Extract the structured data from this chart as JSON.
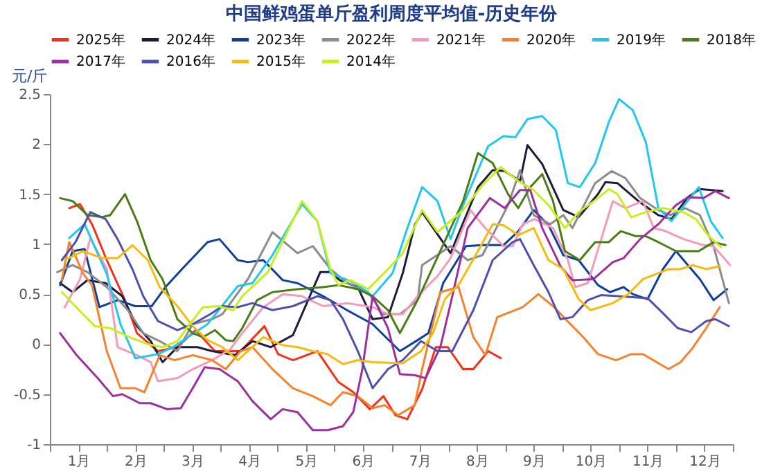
{
  "chart_data": {
    "type": "line",
    "title": "中国鲜鸡蛋单斤盈利周度平均值-历史年份",
    "ylabel": "元/斤",
    "legend": "top",
    "grid": false,
    "xlim": [
      0,
      12
    ],
    "xticks": [
      {
        "value": 0,
        "label": null
      },
      {
        "value": 0.5,
        "label": "1月"
      },
      {
        "value": 1,
        "label": null
      },
      {
        "value": 1.5,
        "label": "2月"
      },
      {
        "value": 2,
        "label": null
      },
      {
        "value": 2.5,
        "label": "3月"
      },
      {
        "value": 3,
        "label": null
      },
      {
        "value": 3.5,
        "label": "4月"
      },
      {
        "value": 4,
        "label": null
      },
      {
        "value": 4.5,
        "label": "5月"
      },
      {
        "value": 5,
        "label": null
      },
      {
        "value": 5.5,
        "label": "6月"
      },
      {
        "value": 6,
        "label": null
      },
      {
        "value": 6.5,
        "label": "7月"
      },
      {
        "value": 7,
        "label": null
      },
      {
        "value": 7.5,
        "label": "8月"
      },
      {
        "value": 8,
        "label": null
      },
      {
        "value": 8.5,
        "label": "9月"
      },
      {
        "value": 9,
        "label": null
      },
      {
        "value": 9.5,
        "label": "10月"
      },
      {
        "value": 10,
        "label": null
      },
      {
        "value": 10.5,
        "label": "11月"
      },
      {
        "value": 11,
        "label": null
      },
      {
        "value": 11.5,
        "label": "12月"
      },
      {
        "value": 12,
        "label": null
      }
    ],
    "ylim": [
      -1,
      2.5
    ],
    "yticks": [
      -1,
      -0.5,
      0,
      0.5,
      1,
      1.5,
      2,
      2.5
    ],
    "series": [
      {
        "name": "2025年",
        "color": "#f5311b",
        "x": [
          0.34,
          0.53,
          0.74,
          1.0,
          1.32,
          1.53,
          1.9,
          2.24,
          2.56,
          2.9,
          3.35,
          3.77,
          4.01,
          4.27,
          4.7,
          5.07,
          5.33,
          5.62,
          5.86,
          6.07,
          6.28,
          6.54,
          6.78,
          6.99,
          7.26,
          7.44,
          7.7,
          7.92
        ],
        "values": [
          1.36,
          1.4,
          1.2,
          0.84,
          0.44,
          0.11,
          -0.07,
          -0.03,
          0.14,
          -0.07,
          -0.07,
          0.18,
          -0.1,
          -0.16,
          -0.07,
          -0.38,
          -0.48,
          -0.65,
          -0.52,
          -0.71,
          -0.75,
          -0.45,
          -0.03,
          -0.03,
          -0.25,
          -0.25,
          -0.07,
          -0.14
        ]
      },
      {
        "name": "2024年",
        "color": "#1c1c3c",
        "x": [
          0.18,
          0.4,
          0.66,
          0.98,
          1.27,
          1.53,
          1.77,
          1.98,
          2.24,
          2.59,
          2.85,
          3.25,
          3.56,
          3.88,
          4.27,
          4.75,
          4.93,
          5.09,
          5.41,
          5.67,
          5.94,
          6.2,
          6.41,
          6.54,
          7.04,
          7.52,
          7.78,
          7.99,
          8.26,
          8.39,
          8.65,
          9.02,
          9.29,
          9.63,
          9.76,
          9.97,
          10.34,
          10.69,
          10.92,
          11.21,
          11.42,
          11.82
        ],
        "values": [
          0.61,
          0.52,
          0.64,
          0.61,
          0.48,
          0.18,
          0.03,
          -0.18,
          -0.03,
          -0.03,
          -0.07,
          -0.11,
          0.03,
          -0.03,
          0.09,
          0.72,
          0.72,
          0.64,
          0.57,
          0.25,
          0.27,
          0.71,
          1.19,
          1.32,
          0.91,
          1.57,
          1.74,
          1.73,
          1.63,
          1.99,
          1.8,
          1.34,
          1.27,
          1.5,
          1.62,
          1.61,
          1.43,
          1.29,
          1.25,
          1.47,
          1.55,
          1.53
        ]
      },
      {
        "name": "2023年",
        "color": "#0e3f9c",
        "x": [
          0.18,
          0.4,
          0.61,
          0.87,
          1.19,
          1.5,
          1.79,
          2.03,
          2.32,
          2.77,
          2.98,
          3.3,
          3.48,
          3.75,
          4.09,
          4.35,
          4.8,
          5.22,
          5.67,
          6.15,
          6.46,
          6.65,
          6.91,
          7.31,
          7.6,
          7.97,
          8.23,
          8.5,
          8.76,
          9.02,
          9.29,
          9.63,
          9.84,
          10.08,
          10.24,
          10.5,
          10.77,
          11.0,
          11.42,
          11.66,
          11.9
        ],
        "values": [
          0.59,
          0.93,
          0.95,
          0.37,
          0.44,
          0.38,
          0.38,
          0.57,
          0.75,
          1.02,
          1.05,
          0.84,
          0.82,
          0.84,
          0.64,
          0.61,
          0.48,
          0.34,
          0.2,
          -0.07,
          0.04,
          0.11,
          0.61,
          0.98,
          0.99,
          0.99,
          1.13,
          1.34,
          1.19,
          0.89,
          0.84,
          0.59,
          0.52,
          0.57,
          0.5,
          0.45,
          0.75,
          0.93,
          0.65,
          0.44,
          0.55
        ]
      },
      {
        "name": "2022年",
        "color": "#8c8c8c",
        "x": [
          0.13,
          0.4,
          0.66,
          1.0,
          1.37,
          1.64,
          1.93,
          2.24,
          2.51,
          2.85,
          3.03,
          3.48,
          3.91,
          4.35,
          4.62,
          4.93,
          5.22,
          5.59,
          5.86,
          6.15,
          6.46,
          6.54,
          7.04,
          7.34,
          7.6,
          8.05,
          8.26,
          8.5,
          8.79,
          9.02,
          9.18,
          9.58,
          9.87,
          10.11,
          10.37,
          10.69,
          10.9,
          11.16,
          11.42,
          11.66,
          11.93
        ],
        "values": [
          0.72,
          0.79,
          0.72,
          0.57,
          0.34,
          0.11,
          0.03,
          -0.07,
          0.2,
          0.25,
          0.3,
          0.65,
          1.12,
          0.91,
          0.98,
          0.75,
          0.61,
          0.52,
          0.3,
          0.3,
          0.44,
          0.79,
          0.98,
          0.84,
          0.89,
          1.39,
          1.74,
          1.29,
          1.2,
          1.29,
          1.16,
          1.61,
          1.73,
          1.66,
          1.46,
          1.34,
          1.29,
          1.36,
          1.29,
          0.98,
          0.41
        ]
      },
      {
        "name": "2021年",
        "color": "#f59bb8",
        "x": [
          0.26,
          0.53,
          0.71,
          1.0,
          1.19,
          1.53,
          1.77,
          1.9,
          2.24,
          2.51,
          2.85,
          3.17,
          3.38,
          3.75,
          4.09,
          4.43,
          4.8,
          5.22,
          5.67,
          5.94,
          6.2,
          6.46,
          6.81,
          7.04,
          7.39,
          7.65,
          7.97,
          8.13,
          8.31,
          8.52,
          8.84,
          9.1,
          9.23,
          9.45,
          9.89,
          10.11,
          10.42,
          10.61,
          10.82,
          11.13,
          11.48,
          11.66,
          11.95
        ],
        "values": [
          0.37,
          0.65,
          1.06,
          0.75,
          -0.03,
          -0.11,
          -0.18,
          -0.37,
          -0.34,
          -0.25,
          -0.16,
          -0.05,
          0.11,
          0.37,
          0.5,
          0.48,
          0.38,
          0.41,
          0.37,
          0.3,
          0.3,
          0.48,
          0.68,
          0.86,
          1.34,
          1.16,
          0.98,
          0.98,
          1.2,
          1.25,
          1.16,
          0.84,
          0.57,
          0.61,
          1.43,
          1.36,
          1.43,
          1.16,
          1.13,
          1.05,
          0.99,
          0.98,
          0.79
        ]
      },
      {
        "name": "2020年",
        "color": "#f7822c",
        "x": [
          0.21,
          0.34,
          0.58,
          0.74,
          1.0,
          1.24,
          1.5,
          1.66,
          1.93,
          2.19,
          2.51,
          2.85,
          3.09,
          3.35,
          3.56,
          3.91,
          4.27,
          4.62,
          4.93,
          5.15,
          5.41,
          5.67,
          5.88,
          6.12,
          6.41,
          6.54,
          6.86,
          7.18,
          7.44,
          7.65,
          7.86,
          8.31,
          8.58,
          8.84,
          9.18,
          9.37,
          9.63,
          9.95,
          10.21,
          10.42,
          10.87,
          11.08,
          11.29,
          11.53,
          11.77
        ],
        "values": [
          0.64,
          1.02,
          0.71,
          0.59,
          -0.07,
          -0.44,
          -0.44,
          -0.48,
          -0.11,
          -0.16,
          -0.11,
          -0.16,
          -0.25,
          -0.07,
          -0.03,
          -0.25,
          -0.44,
          -0.52,
          -0.61,
          -0.48,
          -0.52,
          -0.64,
          -0.61,
          -0.71,
          -0.61,
          -0.25,
          0.52,
          0.57,
          0.07,
          -0.11,
          0.27,
          0.37,
          0.5,
          0.38,
          0.18,
          0.07,
          -0.1,
          -0.16,
          -0.1,
          -0.1,
          -0.25,
          -0.18,
          -0.04,
          0.16,
          0.37
        ]
      },
      {
        "name": "2019年",
        "color": "#1ec8f0",
        "x": [
          0.34,
          0.61,
          1.0,
          1.24,
          1.5,
          1.9,
          2.16,
          2.77,
          3.3,
          3.56,
          3.91,
          4.43,
          4.7,
          4.93,
          5.36,
          5.67,
          6.02,
          6.28,
          6.54,
          6.81,
          7.04,
          7.26,
          7.7,
          7.97,
          8.18,
          8.39,
          8.65,
          8.89,
          9.1,
          9.31,
          9.58,
          9.82,
          10.0,
          10.24,
          10.47,
          10.69,
          10.92,
          11.4,
          11.61,
          11.82
        ],
        "values": [
          1.06,
          1.2,
          0.7,
          0.2,
          -0.14,
          -0.1,
          -0.03,
          0.2,
          0.58,
          0.61,
          0.89,
          1.4,
          1.23,
          0.71,
          0.61,
          0.48,
          0.71,
          1.16,
          1.57,
          1.43,
          1.05,
          1.39,
          1.98,
          2.08,
          2.07,
          2.25,
          2.28,
          2.14,
          1.61,
          1.57,
          1.81,
          2.22,
          2.45,
          2.34,
          2.02,
          1.36,
          1.23,
          1.57,
          1.23,
          1.06
        ]
      },
      {
        "name": "2018年",
        "color": "#4a7d17",
        "x": [
          0.18,
          0.4,
          0.66,
          0.92,
          1.06,
          1.32,
          1.53,
          1.77,
          1.98,
          2.24,
          2.51,
          2.69,
          2.9,
          3.09,
          3.22,
          3.38,
          3.64,
          3.91,
          4.35,
          4.8,
          5.07,
          5.41,
          5.67,
          5.94,
          6.15,
          6.46,
          6.86,
          7.26,
          7.52,
          7.78,
          8.05,
          8.23,
          8.44,
          8.65,
          8.84,
          9.05,
          9.31,
          9.58,
          9.82,
          10.03,
          10.29,
          10.47,
          10.69,
          11.0,
          11.4,
          11.66,
          11.87
        ],
        "values": [
          1.46,
          1.43,
          1.29,
          1.27,
          1.29,
          1.5,
          1.23,
          0.84,
          0.65,
          0.25,
          0.11,
          0.07,
          0.14,
          0.04,
          0.03,
          0.16,
          0.44,
          0.52,
          0.55,
          0.57,
          0.59,
          0.55,
          0.48,
          0.34,
          0.11,
          0.44,
          0.93,
          1.43,
          1.91,
          1.81,
          1.5,
          1.36,
          1.57,
          1.7,
          1.43,
          0.93,
          0.84,
          1.02,
          1.02,
          1.13,
          1.08,
          1.08,
          1.02,
          0.93,
          0.93,
          1.02,
          0.99
        ]
      },
      {
        "name": "2017年",
        "color": "#9b2f9f",
        "x": [
          0.18,
          0.47,
          0.84,
          1.11,
          1.27,
          1.58,
          1.77,
          2.06,
          2.3,
          2.51,
          2.72,
          2.98,
          3.3,
          3.56,
          3.88,
          4.09,
          4.35,
          4.62,
          4.88,
          5.15,
          5.33,
          5.49,
          5.67,
          5.94,
          6.15,
          6.41,
          6.6,
          6.86,
          7.07,
          7.34,
          7.73,
          7.99,
          8.26,
          8.44,
          8.65,
          8.97,
          9.18,
          9.55,
          9.89,
          10.08,
          10.37,
          10.69,
          11.0,
          11.21,
          11.48,
          11.69,
          11.93
        ],
        "values": [
          0.11,
          -0.11,
          -0.34,
          -0.52,
          -0.5,
          -0.59,
          -0.59,
          -0.65,
          -0.64,
          -0.44,
          -0.23,
          -0.25,
          -0.37,
          -0.57,
          -0.75,
          -0.65,
          -0.68,
          -0.86,
          -0.86,
          -0.82,
          -0.68,
          -0.25,
          0.48,
          0.16,
          -0.3,
          -0.31,
          -0.34,
          -0.03,
          0.48,
          1.16,
          1.46,
          1.36,
          1.54,
          1.54,
          1.16,
          0.78,
          0.64,
          0.65,
          0.82,
          0.86,
          1.05,
          1.2,
          1.39,
          1.47,
          1.46,
          1.53,
          1.46
        ]
      },
      {
        "name": "2016年",
        "color": "#4e4fb0",
        "x": [
          0.21,
          0.45,
          0.71,
          0.98,
          1.19,
          1.45,
          1.64,
          1.9,
          2.24,
          2.51,
          2.82,
          3.03,
          3.3,
          3.56,
          3.91,
          4.27,
          4.7,
          4.93,
          5.15,
          5.41,
          5.67,
          5.94,
          6.2,
          6.52,
          6.81,
          7.07,
          7.44,
          7.78,
          8.13,
          8.26,
          8.5,
          8.76,
          8.97,
          9.18,
          9.45,
          9.68,
          9.97,
          10.5,
          10.77,
          11.03,
          11.27,
          11.53,
          11.69,
          11.93
        ],
        "values": [
          0.84,
          1.02,
          1.32,
          1.25,
          1.05,
          0.75,
          0.48,
          0.23,
          0.14,
          0.2,
          0.3,
          0.38,
          0.37,
          0.41,
          0.34,
          0.38,
          0.48,
          0.44,
          0.25,
          -0.07,
          -0.44,
          -0.25,
          -0.16,
          0.03,
          -0.07,
          -0.07,
          0.34,
          0.84,
          1.02,
          1.05,
          0.79,
          0.52,
          0.25,
          0.27,
          0.44,
          0.49,
          0.48,
          0.46,
          0.31,
          0.16,
          0.12,
          0.23,
          0.25,
          0.18
        ]
      },
      {
        "name": "2015年",
        "color": "#f9b90d",
        "x": [
          0.26,
          0.58,
          0.92,
          1.19,
          1.45,
          1.72,
          1.93,
          2.24,
          2.51,
          2.77,
          3.03,
          3.3,
          3.75,
          4.09,
          4.35,
          4.62,
          4.88,
          5.15,
          5.41,
          5.67,
          6.2,
          6.52,
          6.73,
          6.94,
          7.2,
          7.52,
          7.78,
          7.97,
          8.23,
          8.5,
          8.76,
          9.02,
          9.29,
          9.5,
          9.89,
          10.16,
          10.42,
          10.69,
          10.87,
          11.08,
          11.29,
          11.53,
          11.77
        ],
        "values": [
          0.84,
          0.93,
          0.86,
          0.86,
          0.99,
          0.84,
          0.57,
          0.38,
          0.18,
          0.04,
          -0.03,
          -0.16,
          0.07,
          -0.01,
          -0.03,
          -0.07,
          -0.1,
          -0.2,
          -0.16,
          -0.18,
          -0.19,
          -0.07,
          0.11,
          0.45,
          0.61,
          0.93,
          1.2,
          1.19,
          1.09,
          1.16,
          0.84,
          0.75,
          0.45,
          0.34,
          0.41,
          0.5,
          0.65,
          0.71,
          0.75,
          0.75,
          0.79,
          0.75,
          0.78
        ]
      },
      {
        "name": "2014年",
        "color": "#c7f01a",
        "x": [
          0.21,
          0.58,
          0.79,
          1.06,
          1.4,
          1.72,
          1.98,
          2.24,
          2.43,
          2.69,
          2.96,
          3.22,
          3.38,
          3.83,
          4.17,
          4.43,
          4.7,
          4.93,
          5.07,
          5.28,
          5.59,
          5.94,
          6.2,
          6.54,
          6.81,
          7.26,
          7.6,
          7.92,
          8.23,
          8.5,
          8.76,
          9.05,
          9.29,
          9.63,
          9.82,
          9.97,
          10.21,
          10.47,
          10.77,
          11.13,
          11.35,
          11.56,
          11.79
        ],
        "values": [
          0.52,
          0.3,
          0.18,
          0.16,
          0.07,
          0,
          -0.03,
          0.03,
          0.18,
          0.37,
          0.38,
          0.34,
          0.48,
          0.72,
          1.12,
          1.43,
          1.23,
          0.75,
          0.59,
          0.64,
          0.55,
          0.75,
          0.91,
          1.34,
          1.12,
          1.34,
          1.59,
          1.77,
          1.63,
          1.54,
          1.39,
          1.16,
          1.32,
          1.46,
          1.55,
          1.5,
          1.27,
          1.32,
          1.36,
          1.32,
          1.25,
          1.09,
          0.97
        ]
      }
    ]
  }
}
